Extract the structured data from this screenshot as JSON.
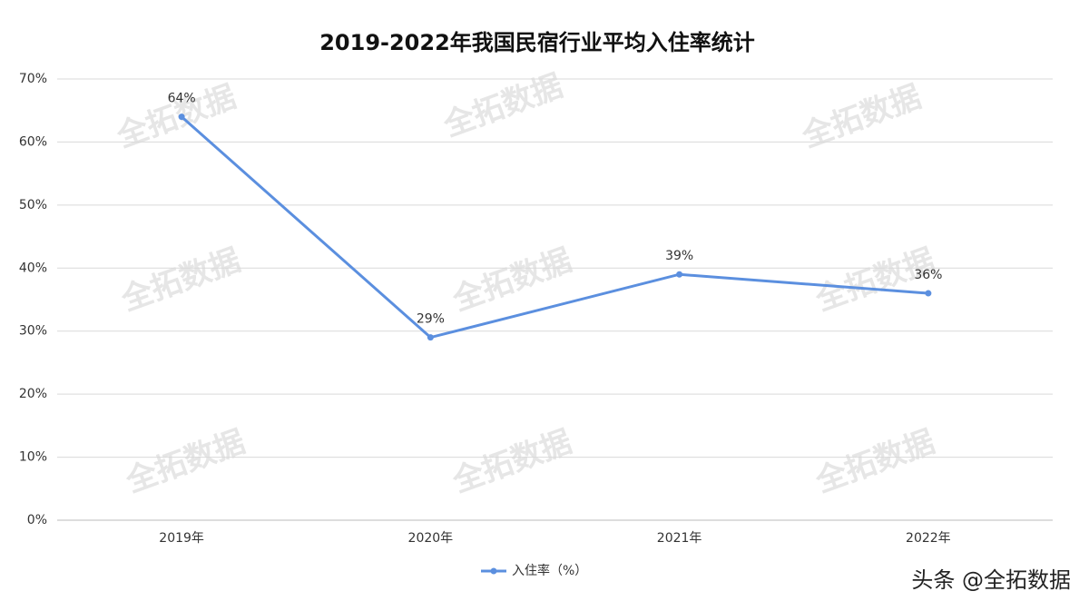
{
  "chart_data": {
    "type": "line",
    "title": "2019-2022年我国民宿行业平均入住率统计",
    "categories": [
      "2019年",
      "2020年",
      "2021年",
      "2022年"
    ],
    "series": [
      {
        "name": "入住率（%）",
        "color": "#5b8fdf",
        "values": [
          64,
          29,
          39,
          36
        ],
        "value_labels": [
          "64%",
          "29%",
          "39%",
          "36%"
        ]
      }
    ],
    "ylim": [
      0,
      70
    ],
    "yticks": [
      {
        "value": 0,
        "label": "0%"
      },
      {
        "value": 10,
        "label": "10%"
      },
      {
        "value": 20,
        "label": "20%"
      },
      {
        "value": 30,
        "label": "30%"
      },
      {
        "value": 40,
        "label": "40%"
      },
      {
        "value": 50,
        "label": "50%"
      },
      {
        "value": 60,
        "label": "60%"
      },
      {
        "value": 70,
        "label": "70%"
      }
    ],
    "grid": true,
    "legend": "bottom",
    "watermark": "全拓数据",
    "source_mark": "头条 @全拓数据"
  }
}
